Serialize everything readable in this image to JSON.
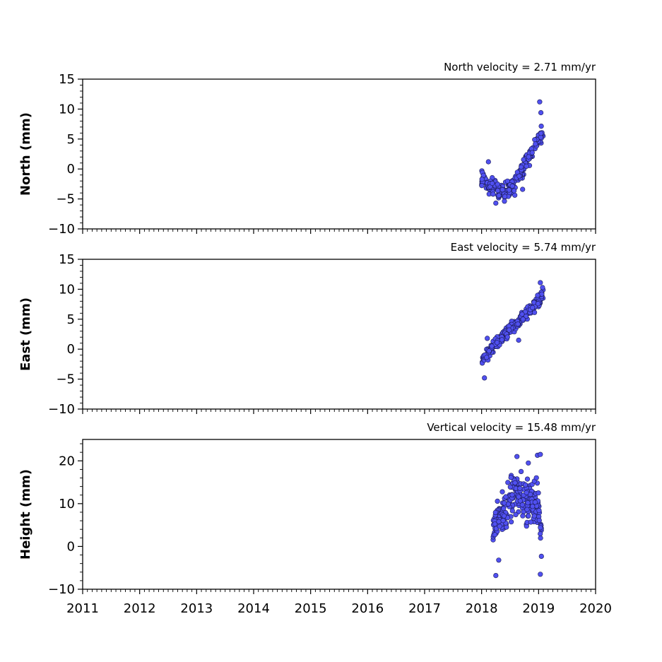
{
  "chart_data": [
    {
      "type": "scatter",
      "title": "North velocity = 2.71 mm/yr",
      "ylabel": "North (mm)",
      "xlim": [
        2011,
        2020
      ],
      "ylim": [
        -10,
        15
      ],
      "yticks": [
        "15",
        "10",
        "5",
        "0",
        "−10"
      ],
      "ytick_values": [
        15,
        10,
        5,
        0,
        -10
      ],
      "ytick_labels_all": {
        "15": "15",
        "10": "10",
        "5": "5",
        "0": "0",
        "-5": "−5",
        "-10": "−10"
      },
      "marker_color": "#5050f0",
      "trend": [
        [
          2018.0,
          -1.5
        ],
        [
          2018.1,
          -2.6
        ],
        [
          2018.2,
          -3.0
        ],
        [
          2018.3,
          -3.6
        ],
        [
          2018.4,
          -4.0
        ],
        [
          2018.5,
          -3.2
        ],
        [
          2018.6,
          -2.0
        ],
        [
          2018.7,
          -0.5
        ],
        [
          2018.8,
          1.5
        ],
        [
          2018.9,
          3.5
        ],
        [
          2019.0,
          5.0
        ],
        [
          2019.08,
          6.0
        ]
      ],
      "spread": 1.2,
      "outliers": [
        [
          2019.02,
          11.2
        ],
        [
          2019.04,
          9.4
        ],
        [
          2018.12,
          1.2
        ],
        [
          2018.25,
          -5.7
        ],
        [
          2018.72,
          -3.4
        ]
      ]
    },
    {
      "type": "scatter",
      "title": "East velocity = 5.74 mm/yr",
      "ylabel": "East (mm)",
      "xlim": [
        2011,
        2020
      ],
      "ylim": [
        -10,
        15
      ],
      "marker_color": "#5050f0",
      "trend": [
        [
          2018.0,
          -1.8
        ],
        [
          2018.1,
          -0.8
        ],
        [
          2018.2,
          0.4
        ],
        [
          2018.3,
          1.6
        ],
        [
          2018.4,
          2.5
        ],
        [
          2018.5,
          3.2
        ],
        [
          2018.6,
          4.0
        ],
        [
          2018.7,
          5.0
        ],
        [
          2018.8,
          6.0
        ],
        [
          2018.9,
          7.0
        ],
        [
          2019.0,
          8.0
        ],
        [
          2019.08,
          9.5
        ]
      ],
      "spread": 0.9,
      "outliers": [
        [
          2019.03,
          11.1
        ],
        [
          2018.05,
          -4.8
        ],
        [
          2018.65,
          1.5
        ],
        [
          2018.1,
          1.8
        ]
      ]
    },
    {
      "type": "scatter",
      "title": "Vertical velocity = 15.48 mm/yr",
      "ylabel": "Height (mm)",
      "xlim": [
        2011,
        2020
      ],
      "ylim": [
        -10,
        25
      ],
      "marker_color": "#5050f0",
      "trend": [
        [
          2018.2,
          3.0
        ],
        [
          2018.3,
          7.0
        ],
        [
          2018.4,
          9.0
        ],
        [
          2018.5,
          11.5
        ],
        [
          2018.6,
          13.0
        ],
        [
          2018.7,
          12.0
        ],
        [
          2018.8,
          10.0
        ],
        [
          2018.9,
          11.0
        ],
        [
          2019.0,
          9.0
        ],
        [
          2019.05,
          3.0
        ]
      ],
      "spread": 4.0,
      "outliers": [
        [
          2018.62,
          21.0
        ],
        [
          2018.98,
          21.3
        ],
        [
          2019.03,
          21.5
        ],
        [
          2018.82,
          19.5
        ],
        [
          2018.25,
          -6.8
        ],
        [
          2019.03,
          -6.5
        ],
        [
          2018.3,
          -3.2
        ]
      ]
    }
  ],
  "shared_xaxis": {
    "ticks": [
      "2011",
      "2012",
      "2013",
      "2014",
      "2015",
      "2016",
      "2017",
      "2018",
      "2019",
      "2020"
    ],
    "tick_values": [
      2011,
      2012,
      2013,
      2014,
      2015,
      2016,
      2017,
      2018,
      2019,
      2020
    ]
  },
  "panel_yticks": [
    {
      "values": [
        15,
        10,
        5,
        0,
        -5,
        -10
      ],
      "labels": [
        "15",
        "10",
        "5",
        "0",
        "−5",
        "−10"
      ]
    },
    {
      "values": [
        15,
        10,
        5,
        0,
        -5,
        -10
      ],
      "labels": [
        "15",
        "10",
        "5",
        "0",
        "−5",
        "−10"
      ]
    },
    {
      "values": [
        20,
        10,
        0,
        -10
      ],
      "labels": [
        "20",
        "10",
        "0",
        "−10"
      ]
    }
  ]
}
